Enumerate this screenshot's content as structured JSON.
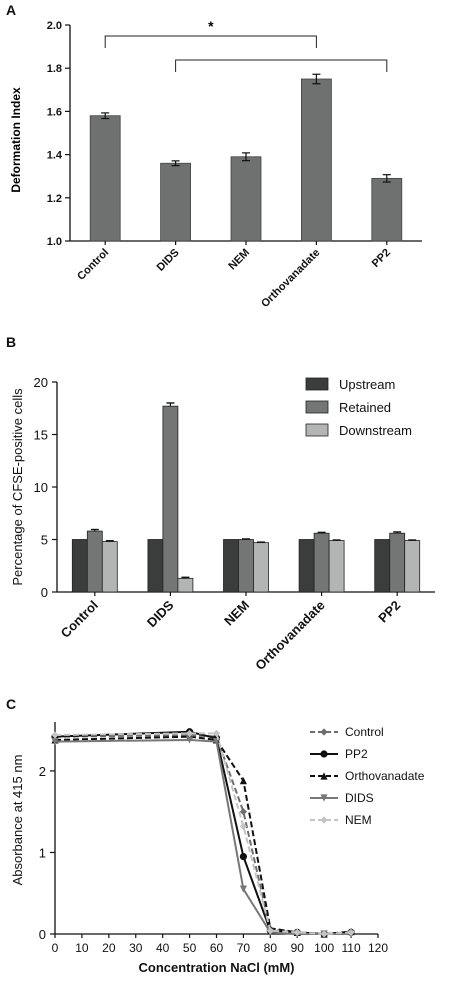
{
  "chart_data": [
    {
      "panel": "A",
      "type": "bar",
      "categories": [
        "Control",
        "DIDS",
        "NEM",
        "Orthovanadate",
        "PP2"
      ],
      "values": [
        1.58,
        1.36,
        1.39,
        1.75,
        1.29
      ],
      "errors": [
        0.013,
        0.011,
        0.018,
        0.022,
        0.017
      ],
      "ylabel": "Deformation Index",
      "ylim": [
        1.0,
        2.0
      ],
      "yticks": [
        "1.0",
        "1.2",
        "1.4",
        "1.6",
        "1.8",
        "2.0"
      ],
      "annotations": [
        {
          "text": "*",
          "from": "Control",
          "to": "Orthovanadate"
        },
        {
          "text": "",
          "from": "DIDS",
          "to": "PP2"
        }
      ],
      "bar_color": "#6e716f"
    },
    {
      "panel": "B",
      "type": "bar",
      "categories": [
        "Control",
        "DIDS",
        "NEM",
        "Orthovanadate",
        "PP2"
      ],
      "series": [
        {
          "name": "Upstream",
          "values": [
            5.0,
            5.0,
            5.0,
            5.0,
            5.0
          ],
          "errors": [
            0,
            0,
            0,
            0,
            0
          ],
          "color": "#3a3d3c"
        },
        {
          "name": "Retained",
          "values": [
            5.8,
            17.7,
            5.0,
            5.6,
            5.6
          ],
          "errors": [
            0.15,
            0.3,
            0.05,
            0.08,
            0.12
          ],
          "color": "#737674"
        },
        {
          "name": "Downstream",
          "values": [
            4.8,
            1.3,
            4.7,
            4.9,
            4.9
          ],
          "errors": [
            0.08,
            0.1,
            0.05,
            0.05,
            0.05
          ],
          "color": "#b3b5b4"
        }
      ],
      "ylabel": "Percentage of CFSE-positive cells",
      "ylim": [
        0,
        20
      ],
      "yticks": [
        "0",
        "5",
        "10",
        "15",
        "20"
      ],
      "legend_position": "top-right"
    },
    {
      "panel": "C",
      "type": "line",
      "x": [
        0,
        50,
        60,
        70,
        80,
        90,
        100,
        110
      ],
      "series": [
        {
          "name": "Control",
          "values": [
            2.42,
            2.44,
            2.42,
            1.5,
            0.05,
            0.02,
            0.0,
            0.02
          ],
          "color": "#6e6e6e",
          "dash": "6,3",
          "marker": "diamond"
        },
        {
          "name": "PP2",
          "values": [
            2.42,
            2.48,
            2.4,
            0.95,
            0.04,
            0.02,
            0.0,
            0.02
          ],
          "color": "#111111",
          "dash": "",
          "marker": "circle"
        },
        {
          "name": "Orthovanadate",
          "values": [
            2.38,
            2.42,
            2.38,
            1.88,
            0.07,
            0.02,
            0.0,
            0.03
          ],
          "color": "#111111",
          "dash": "6,3",
          "marker": "triangle-up"
        },
        {
          "name": "DIDS",
          "values": [
            2.36,
            2.38,
            2.36,
            0.55,
            0.02,
            0.0,
            0.0,
            0.0
          ],
          "color": "#777777",
          "dash": "",
          "marker": "triangle-down"
        },
        {
          "name": "NEM",
          "values": [
            2.44,
            2.46,
            2.46,
            1.32,
            0.04,
            0.02,
            0.0,
            0.02
          ],
          "color": "#c4c4c4",
          "dash": "6,3",
          "marker": "diamond"
        }
      ],
      "xlabel": "Concentration NaCl (mM)",
      "ylabel": "Absorbance at 415 nm",
      "xlim": [
        0,
        120
      ],
      "ylim": [
        0,
        2.6
      ],
      "xticks": [
        "0",
        "10",
        "20",
        "30",
        "40",
        "50",
        "60",
        "70",
        "80",
        "90",
        "100",
        "110",
        "120"
      ],
      "yticks": [
        "0",
        "1",
        "2"
      ],
      "legend_position": "top-right"
    }
  ]
}
